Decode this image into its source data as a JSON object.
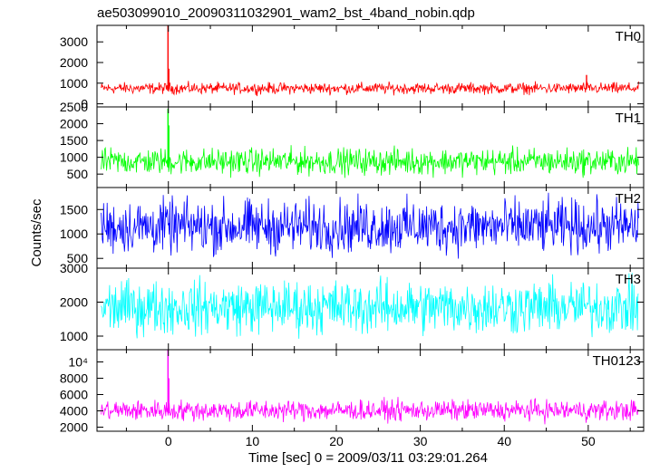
{
  "chart_data": {
    "type": "line",
    "title": "ae503099010_20090311032901_wam2_bst_4band_nobin.qdp",
    "xlabel": "Time [sec] 0 = 2009/03/11 03:29:01.264",
    "ylabel": "Counts/sec",
    "xlim": [
      -8.5,
      56.6
    ],
    "x_ticks": [
      0,
      10,
      20,
      30,
      40,
      50
    ],
    "x_tick_labels": [
      "0",
      "10",
      "20",
      "30",
      "40",
      "50"
    ],
    "panels": [
      {
        "name": "TH0",
        "color": "#ff0000",
        "ylim": [
          -150,
          3800
        ],
        "y_ticks": [
          0,
          1000,
          2000,
          3000
        ],
        "y_tick_labels": [
          "0",
          "1000",
          "2000",
          "3000"
        ],
        "baseline": 700,
        "noise_low": 350,
        "noise_high": 1150,
        "spikes": [
          {
            "x": -0.05,
            "y": 3800
          },
          {
            "x": 0.05,
            "y": 1700
          },
          {
            "x": 49.8,
            "y": 1400
          }
        ]
      },
      {
        "name": "TH1",
        "color": "#00ff00",
        "ylim": [
          100,
          2500
        ],
        "y_ticks": [
          500,
          1000,
          1500,
          2000,
          2500
        ],
        "y_tick_labels": [
          "500",
          "1000",
          "1500",
          "2000",
          "2500"
        ],
        "baseline": 700,
        "noise_low": 300,
        "noise_high": 1450,
        "spikes": [
          {
            "x": -0.05,
            "y": 2450
          },
          {
            "x": 0.05,
            "y": 1950
          }
        ]
      },
      {
        "name": "TH2",
        "color": "#0000ff",
        "ylim": [
          300,
          1950
        ],
        "y_ticks": [
          500,
          1000,
          1500
        ],
        "y_tick_labels": [
          "500",
          "1000",
          "1500"
        ],
        "baseline": 1000,
        "noise_low": 350,
        "noise_high": 1950,
        "spikes": []
      },
      {
        "name": "TH3",
        "color": "#00ffff",
        "ylim": [
          600,
          3000
        ],
        "y_ticks": [
          1000,
          2000,
          3000
        ],
        "y_tick_labels": [
          "1000",
          "2000",
          "3000"
        ],
        "baseline": 1600,
        "noise_low": 700,
        "noise_high": 3000,
        "spikes": []
      },
      {
        "name": "TH0123",
        "color": "#ff00ff",
        "ylim": [
          1500,
          11500
        ],
        "y_ticks": [
          2000,
          4000,
          6000,
          8000,
          10000
        ],
        "y_tick_labels": [
          "2000",
          "4000",
          "6000",
          "8000",
          "10⁴"
        ],
        "baseline": 3700,
        "noise_low": 2200,
        "noise_high": 5900,
        "spikes": [
          {
            "x": -0.05,
            "y": 11500
          },
          {
            "x": 0.05,
            "y": 8000
          }
        ]
      }
    ]
  }
}
